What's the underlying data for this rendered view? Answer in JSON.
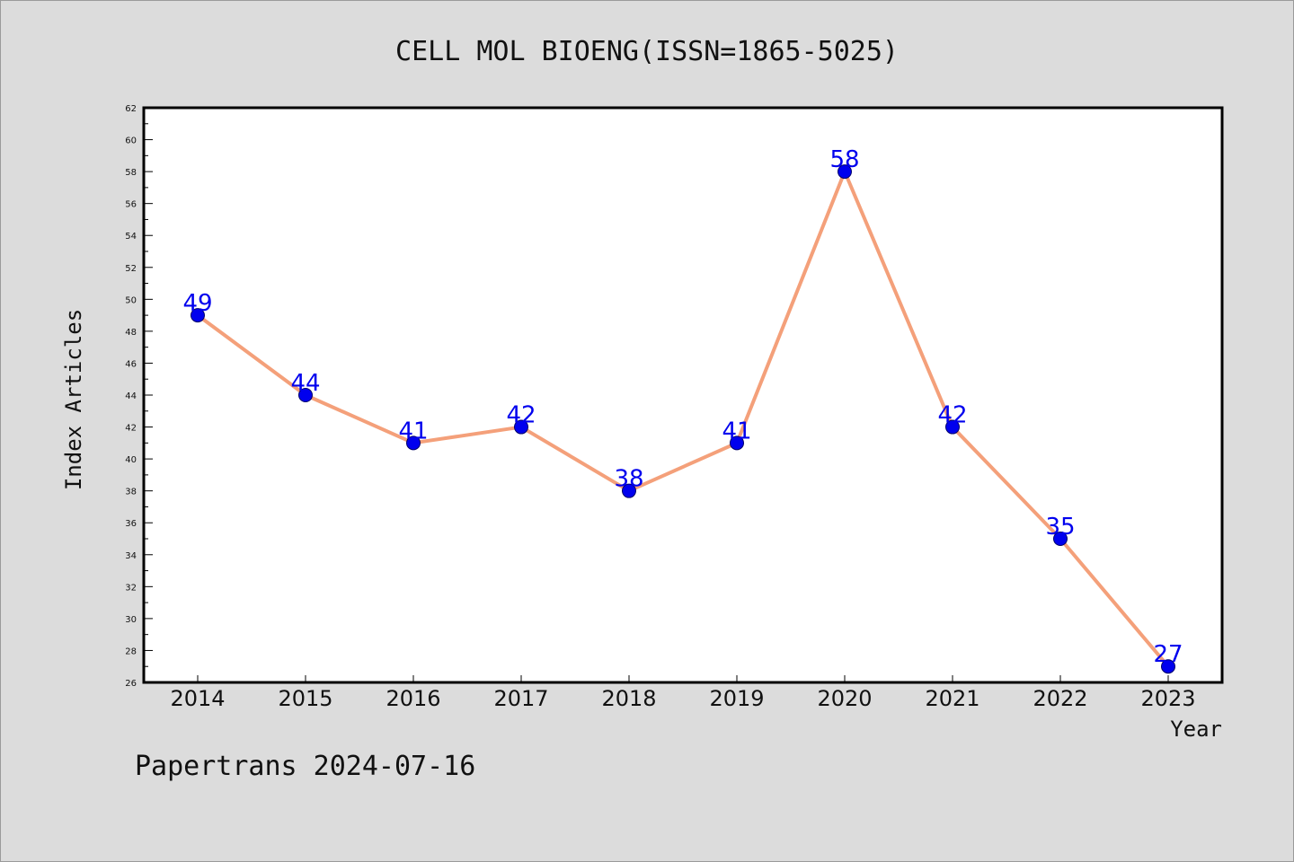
{
  "chart_data": {
    "type": "line",
    "title": "CELL MOL BIOENG(ISSN=1865-5025)",
    "xlabel": "Year",
    "ylabel": "Index Articles",
    "categories": [
      "2014",
      "2015",
      "2016",
      "2017",
      "2018",
      "2019",
      "2020",
      "2021",
      "2022",
      "2023"
    ],
    "series": [
      {
        "values": [
          49,
          44,
          41,
          42,
          38,
          41,
          58,
          42,
          35,
          27
        ]
      }
    ],
    "ylim": [
      26,
      62
    ],
    "yticks": [
      "26",
      "28",
      "30",
      "32",
      "34",
      "36",
      "38",
      "40",
      "42",
      "44",
      "46",
      "48",
      "50",
      "52",
      "54",
      "56",
      "58",
      "60",
      "62"
    ],
    "data_labels": [
      "49",
      "44",
      "41",
      "42",
      "38",
      "41",
      "58",
      "42",
      "35",
      "27"
    ],
    "grid": false,
    "line_color": "#f4a07a",
    "marker_color": "#0000ee"
  },
  "footer": "Papertrans 2024-07-16"
}
